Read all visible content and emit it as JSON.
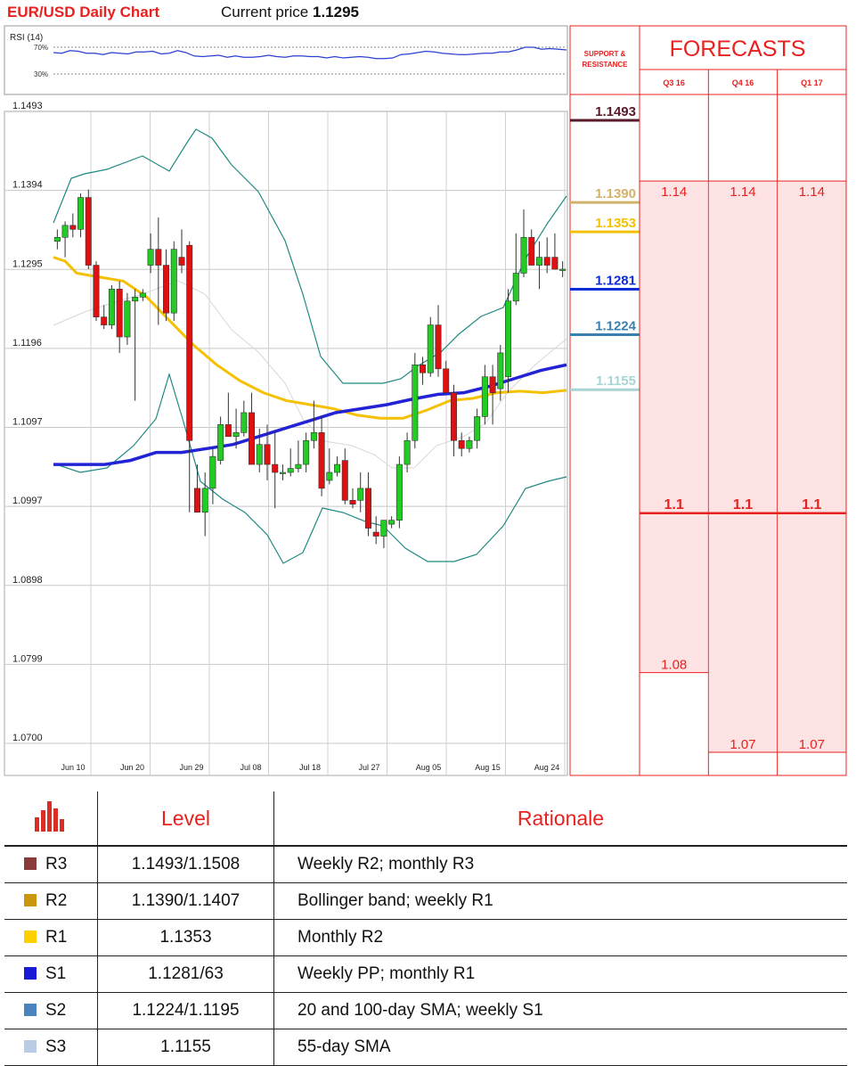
{
  "header": {
    "title": "EUR/USD Daily Chart",
    "price_label": "Current price",
    "price_value": "1.1295"
  },
  "rsi": {
    "label": "RSI (14)",
    "levels": [
      "70%",
      "30%"
    ],
    "values": [
      62,
      61,
      65,
      64,
      61,
      61,
      59,
      62,
      61,
      60,
      63,
      63,
      64,
      60,
      61,
      65,
      62,
      57,
      56,
      57,
      58,
      55,
      57,
      55,
      55,
      56,
      58,
      56,
      55,
      57,
      57,
      56,
      56,
      54,
      56,
      54,
      55,
      56,
      55,
      53,
      53,
      54,
      59,
      60,
      62,
      64,
      63,
      61,
      60,
      59,
      59,
      60,
      61,
      61,
      63,
      63,
      66,
      70,
      70,
      67,
      68,
      67,
      66
    ]
  },
  "chart_data": {
    "type": "candlestick",
    "title": "EUR/USD Daily Chart",
    "x_ticks": [
      "Jun 10",
      "Jun 20",
      "Jun 29",
      "Jul 08",
      "Jul 18",
      "Jul 27",
      "Aug 05",
      "Aug 15",
      "Aug 24"
    ],
    "y_ticks": [
      "1.1493",
      "1.1394",
      "1.1295",
      "1.1196",
      "1.1097",
      "1.0997",
      "1.0898",
      "1.0799",
      "1.0700"
    ],
    "ylim": [
      1.07,
      1.1493
    ],
    "candles": [
      [
        1.133,
        1.1345,
        1.132,
        1.1335
      ],
      [
        1.1335,
        1.1355,
        1.131,
        1.135
      ],
      [
        1.135,
        1.1365,
        1.1335,
        1.1345
      ],
      [
        1.1345,
        1.139,
        1.1335,
        1.1385
      ],
      [
        1.1385,
        1.1395,
        1.1295,
        1.13
      ],
      [
        1.13,
        1.1305,
        1.123,
        1.1235
      ],
      [
        1.1235,
        1.125,
        1.122,
        1.1225
      ],
      [
        1.1225,
        1.1275,
        1.122,
        1.127
      ],
      [
        1.127,
        1.128,
        1.119,
        1.121
      ],
      [
        1.121,
        1.1265,
        1.12,
        1.1255
      ],
      [
        1.1255,
        1.127,
        1.113,
        1.126
      ],
      [
        1.126,
        1.127,
        1.1255,
        1.1265
      ],
      [
        1.13,
        1.134,
        1.129,
        1.132
      ],
      [
        1.132,
        1.136,
        1.1225,
        1.13
      ],
      [
        1.13,
        1.132,
        1.123,
        1.124
      ],
      [
        1.124,
        1.133,
        1.123,
        1.132
      ],
      [
        1.131,
        1.1345,
        1.129,
        1.13
      ],
      [
        1.1325,
        1.133,
        1.099,
        1.108
      ],
      [
        1.102,
        1.105,
        1.099,
        1.099
      ],
      [
        1.099,
        1.104,
        1.096,
        1.102
      ],
      [
        1.102,
        1.107,
        1.1,
        1.106
      ],
      [
        1.1055,
        1.111,
        1.105,
        1.11
      ],
      [
        1.11,
        1.114,
        1.1085,
        1.1085
      ],
      [
        1.1085,
        1.112,
        1.107,
        1.109
      ],
      [
        1.109,
        1.113,
        1.1085,
        1.1115
      ],
      [
        1.1115,
        1.114,
        1.105,
        1.105
      ],
      [
        1.105,
        1.1095,
        1.104,
        1.1075
      ],
      [
        1.1075,
        1.11,
        1.103,
        1.105
      ],
      [
        1.105,
        1.109,
        1.0995,
        1.104
      ],
      [
        1.104,
        1.105,
        1.103,
        1.104
      ],
      [
        1.104,
        1.107,
        1.1035,
        1.1045
      ],
      [
        1.1045,
        1.108,
        1.104,
        1.105
      ],
      [
        1.105,
        1.109,
        1.104,
        1.108
      ],
      [
        1.108,
        1.113,
        1.107,
        1.109
      ],
      [
        1.109,
        1.111,
        1.101,
        1.102
      ],
      [
        1.103,
        1.107,
        1.1025,
        1.104
      ],
      [
        1.104,
        1.106,
        1.1035,
        1.105
      ],
      [
        1.1055,
        1.107,
        1.1,
        1.1005
      ],
      [
        1.1005,
        1.102,
        1.0995,
        1.1
      ],
      [
        1.1005,
        1.104,
        1.099,
        1.102
      ],
      [
        1.102,
        1.104,
        1.096,
        1.097
      ],
      [
        1.0965,
        1.0985,
        1.095,
        1.096
      ],
      [
        1.096,
        1.0975,
        1.0945,
        1.098
      ],
      [
        1.0975,
        1.0985,
        1.097,
        1.098
      ],
      [
        1.098,
        1.106,
        1.097,
        1.105
      ],
      [
        1.105,
        1.109,
        1.104,
        1.108
      ],
      [
        1.108,
        1.119,
        1.107,
        1.1175
      ],
      [
        1.1175,
        1.1185,
        1.115,
        1.1165
      ],
      [
        1.1165,
        1.1235,
        1.116,
        1.1225
      ],
      [
        1.1225,
        1.125,
        1.116,
        1.117
      ],
      [
        1.117,
        1.118,
        1.114,
        1.114
      ],
      [
        1.114,
        1.115,
        1.106,
        1.108
      ],
      [
        1.108,
        1.109,
        1.106,
        1.107
      ],
      [
        1.107,
        1.1085,
        1.1065,
        1.108
      ],
      [
        1.108,
        1.112,
        1.107,
        1.111
      ],
      [
        1.111,
        1.1175,
        1.11,
        1.116
      ],
      [
        1.116,
        1.1175,
        1.11,
        1.114
      ],
      [
        1.1145,
        1.12,
        1.113,
        1.119
      ],
      [
        1.116,
        1.127,
        1.114,
        1.1255
      ],
      [
        1.1255,
        1.134,
        1.125,
        1.129
      ],
      [
        1.129,
        1.137,
        1.1285,
        1.1335
      ],
      [
        1.1335,
        1.1345,
        1.13,
        1.13
      ],
      [
        1.13,
        1.133,
        1.127,
        1.131
      ],
      [
        1.131,
        1.1335,
        1.129,
        1.13
      ],
      [
        1.131,
        1.134,
        1.1295,
        1.1295
      ],
      [
        1.1295,
        1.1305,
        1.1285,
        1.1295
      ]
    ],
    "sma_yellow": [
      [
        0,
        1.131
      ],
      [
        5,
        1.1305
      ],
      [
        10,
        1.129
      ],
      [
        20,
        1.1285
      ],
      [
        30,
        1.128
      ],
      [
        40,
        1.126
      ],
      [
        50,
        1.123
      ],
      [
        60,
        1.12
      ],
      [
        70,
        1.1175
      ],
      [
        80,
        1.1155
      ],
      [
        90,
        1.114
      ],
      [
        100,
        1.113
      ],
      [
        110,
        1.1125
      ],
      [
        120,
        1.112
      ],
      [
        130,
        1.1112
      ],
      [
        140,
        1.1108
      ],
      [
        150,
        1.1108
      ],
      [
        160,
        1.1118
      ],
      [
        170,
        1.113
      ],
      [
        180,
        1.1133
      ],
      [
        190,
        1.114
      ],
      [
        200,
        1.1142
      ],
      [
        210,
        1.114
      ],
      [
        220,
        1.1143
      ]
    ],
    "sma_blue": [
      [
        0,
        1.105
      ],
      [
        20,
        1.105
      ],
      [
        40,
        1.105
      ],
      [
        60,
        1.1055
      ],
      [
        80,
        1.1065
      ],
      [
        100,
        1.1065
      ],
      [
        120,
        1.107
      ],
      [
        140,
        1.1075
      ],
      [
        160,
        1.1085
      ],
      [
        180,
        1.1095
      ],
      [
        200,
        1.1105
      ],
      [
        220,
        1.1115
      ],
      [
        240,
        1.112
      ],
      [
        260,
        1.1125
      ],
      [
        280,
        1.1132
      ],
      [
        300,
        1.1138
      ],
      [
        320,
        1.114
      ],
      [
        340,
        1.1148
      ],
      [
        360,
        1.1158
      ],
      [
        380,
        1.1168
      ],
      [
        400,
        1.1175
      ]
    ]
  },
  "levels": [
    {
      "value": "1.1493",
      "color": "#5a1a2a"
    },
    {
      "value": "1.1390",
      "color": "#d2b26a"
    },
    {
      "value": "1.1353",
      "color": "#f5c000"
    },
    {
      "value": "1.1281",
      "color": "#0d2cd6"
    },
    {
      "value": "1.1224",
      "color": "#3a7fb0"
    },
    {
      "value": "1.1155",
      "color": "#a8d4d4"
    }
  ],
  "sr_header": {
    "line1": "SUPPORT &",
    "line2": "RESISTANCE"
  },
  "forecasts": {
    "title": "FORECASTS",
    "columns": [
      {
        "label": "Q3 16",
        "high": "1.14",
        "mid": "1.1",
        "low": "1.08"
      },
      {
        "label": "Q4 16",
        "high": "1.14",
        "mid": "1.1",
        "low": "1.07"
      },
      {
        "label": "Q1 17",
        "high": "1.14",
        "mid": "1.1",
        "low": "1.07"
      }
    ]
  },
  "table": {
    "col_level": "Level",
    "col_rationale": "Rationale",
    "rows": [
      {
        "tag": "R3",
        "level": "1.1493/1.1508",
        "rationale": "Weekly R2; monthly R3",
        "color": "#8b3a3a"
      },
      {
        "tag": "R2",
        "level": "1.1390/1.1407",
        "rationale": "Bollinger band; weekly R1",
        "color": "#c9960c"
      },
      {
        "tag": "R1",
        "level": "1.1353",
        "rationale": "Monthly R2",
        "color": "#ffd000"
      },
      {
        "tag": "S1",
        "level": "1.1281/63",
        "rationale": "Weekly PP; monthly R1",
        "color": "#1a1ad6"
      },
      {
        "tag": "S2",
        "level": "1.1224/1.1195",
        "rationale": "20 and 100-day SMA; weekly S1",
        "color": "#4a84bf"
      },
      {
        "tag": "S3",
        "level": "1.1155",
        "rationale": "55-day SMA",
        "color": "#b8cce6"
      }
    ]
  }
}
